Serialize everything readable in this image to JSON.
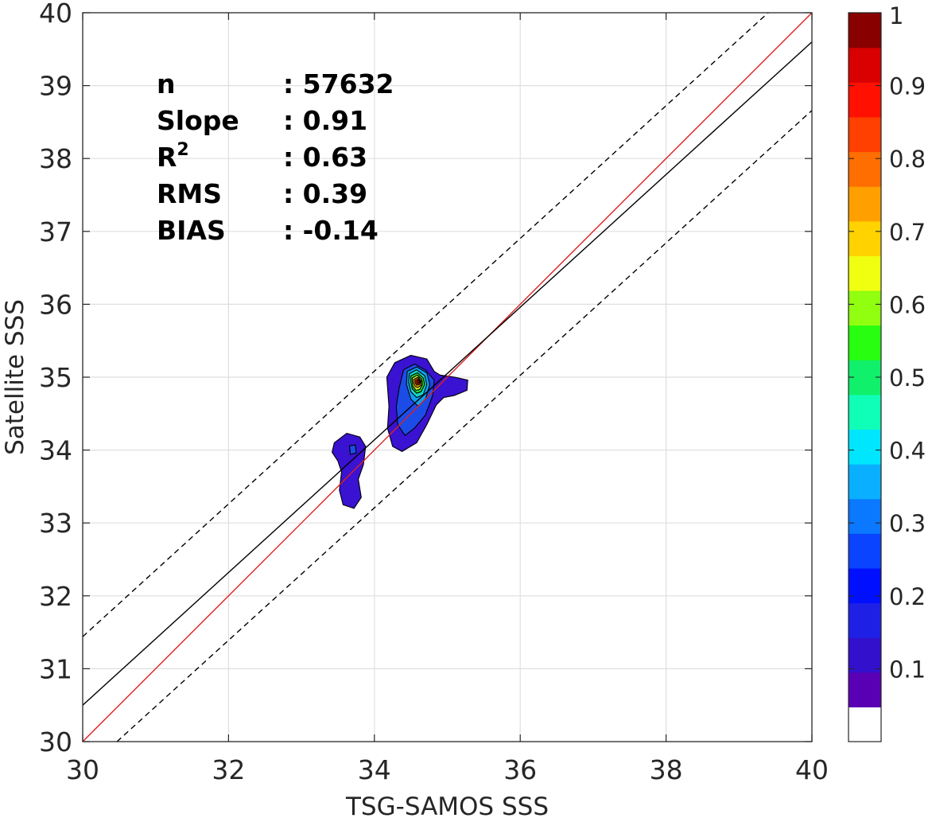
{
  "chart_data": {
    "type": "contour",
    "xlabel": "TSG-SAMOS SSS",
    "ylabel": "Satellite SSS",
    "xlim": [
      30,
      40
    ],
    "ylim": [
      30,
      40
    ],
    "x_ticks": [
      "30",
      "32",
      "34",
      "36",
      "38",
      "40"
    ],
    "y_ticks": [
      "30",
      "31",
      "32",
      "33",
      "34",
      "35",
      "36",
      "37",
      "38",
      "39",
      "40"
    ],
    "grid": true,
    "stats": [
      {
        "label": "n",
        "value": ": 57632"
      },
      {
        "label": "Slope",
        "value": ": 0.91"
      },
      {
        "label": "R",
        "value": ": 0.63",
        "superscript": "2"
      },
      {
        "label": "RMS",
        "value": ": 0.39"
      },
      {
        "label": "BIAS",
        "value": ": -0.14"
      }
    ],
    "lines": [
      {
        "kind": "one-to-one",
        "color": "#e02020",
        "style": "solid",
        "x": [
          30,
          40
        ],
        "y": [
          30,
          40
        ]
      },
      {
        "kind": "regression",
        "color": "#000000",
        "style": "solid",
        "x": [
          30,
          40
        ],
        "y": [
          30.5,
          39.6
        ]
      },
      {
        "kind": "upper-bound",
        "color": "#000000",
        "style": "dashed",
        "x": [
          30,
          39.4
        ],
        "y": [
          31.44,
          40
        ]
      },
      {
        "kind": "lower-bound",
        "color": "#000000",
        "style": "dashed",
        "x": [
          30.47,
          40
        ],
        "y": [
          30,
          38.66
        ]
      }
    ],
    "density_peak": {
      "x": 34.6,
      "y": 34.93
    },
    "contour_regions": [
      {
        "level": 0.1,
        "color": "#3a12d2",
        "points": [
          [
            34.28,
            35.2
          ],
          [
            34.5,
            35.3
          ],
          [
            34.72,
            35.25
          ],
          [
            34.82,
            35.08
          ],
          [
            34.9,
            35.03
          ],
          [
            35.1,
            35.0
          ],
          [
            35.28,
            34.96
          ],
          [
            35.27,
            34.82
          ],
          [
            35.1,
            34.75
          ],
          [
            34.95,
            34.72
          ],
          [
            34.85,
            34.62
          ],
          [
            34.72,
            34.35
          ],
          [
            34.58,
            34.1
          ],
          [
            34.38,
            33.98
          ],
          [
            34.25,
            34.05
          ],
          [
            34.18,
            34.3
          ],
          [
            34.2,
            34.6
          ],
          [
            34.17,
            35.0
          ]
        ]
      },
      {
        "level": 0.1,
        "color": "#3a12d2",
        "points": [
          [
            33.45,
            34.1
          ],
          [
            33.62,
            34.23
          ],
          [
            33.8,
            34.18
          ],
          [
            33.88,
            34.05
          ],
          [
            33.85,
            33.8
          ],
          [
            33.78,
            33.6
          ],
          [
            33.82,
            33.35
          ],
          [
            33.72,
            33.2
          ],
          [
            33.57,
            33.25
          ],
          [
            33.52,
            33.45
          ],
          [
            33.55,
            33.7
          ],
          [
            33.5,
            33.85
          ],
          [
            33.42,
            33.97
          ]
        ]
      },
      {
        "level": 0.2,
        "color": "#1c4ce8",
        "points": [
          [
            34.4,
            35.1
          ],
          [
            34.55,
            35.18
          ],
          [
            34.7,
            35.1
          ],
          [
            34.82,
            34.96
          ],
          [
            34.8,
            34.75
          ],
          [
            34.7,
            34.48
          ],
          [
            34.55,
            34.3
          ],
          [
            34.42,
            34.2
          ],
          [
            34.32,
            34.35
          ],
          [
            34.3,
            34.6
          ],
          [
            34.34,
            34.85
          ]
        ]
      },
      {
        "level": 0.2,
        "color": "#1c4ce8",
        "points": [
          [
            33.66,
            34.06
          ],
          [
            33.74,
            34.07
          ],
          [
            33.75,
            33.96
          ],
          [
            33.67,
            33.94
          ]
        ]
      },
      {
        "level": 0.3,
        "color": "#0f9ef0",
        "points": [
          [
            34.45,
            35.08
          ],
          [
            34.58,
            35.14
          ],
          [
            34.72,
            35.06
          ],
          [
            34.76,
            34.9
          ],
          [
            34.7,
            34.7
          ],
          [
            34.6,
            34.6
          ],
          [
            34.5,
            34.7
          ],
          [
            34.44,
            34.9
          ]
        ]
      },
      {
        "level": 0.4,
        "color": "#12d8c8",
        "points": [
          [
            34.48,
            35.05
          ],
          [
            34.58,
            35.1
          ],
          [
            34.69,
            35.02
          ],
          [
            34.72,
            34.9
          ],
          [
            34.67,
            34.76
          ],
          [
            34.58,
            34.72
          ],
          [
            34.5,
            34.8
          ],
          [
            34.47,
            34.93
          ]
        ]
      },
      {
        "level": 0.5,
        "color": "#28d838",
        "points": [
          [
            34.5,
            35.02
          ],
          [
            34.59,
            35.06
          ],
          [
            34.67,
            34.99
          ],
          [
            34.69,
            34.9
          ],
          [
            34.64,
            34.8
          ],
          [
            34.58,
            34.78
          ],
          [
            34.52,
            34.84
          ],
          [
            34.5,
            34.93
          ]
        ]
      },
      {
        "level": 0.6,
        "color": "#cfe82a",
        "points": [
          [
            34.52,
            34.99
          ],
          [
            34.59,
            35.03
          ],
          [
            34.65,
            34.97
          ],
          [
            34.66,
            34.9
          ],
          [
            34.62,
            34.83
          ],
          [
            34.57,
            34.82
          ],
          [
            34.53,
            34.87
          ],
          [
            34.52,
            34.94
          ]
        ]
      },
      {
        "level": 0.7,
        "color": "#ffb000",
        "points": [
          [
            34.54,
            34.97
          ],
          [
            34.6,
            35.0
          ],
          [
            34.64,
            34.95
          ],
          [
            34.64,
            34.89
          ],
          [
            34.6,
            34.86
          ],
          [
            34.56,
            34.87
          ],
          [
            34.54,
            34.92
          ]
        ]
      },
      {
        "level": 0.85,
        "color": "#ff4a00",
        "points": [
          [
            34.56,
            34.96
          ],
          [
            34.6,
            34.98
          ],
          [
            34.63,
            34.94
          ],
          [
            34.62,
            34.9
          ],
          [
            34.58,
            34.89
          ],
          [
            34.56,
            34.92
          ]
        ]
      },
      {
        "level": 0.95,
        "color": "#b00000",
        "points": [
          [
            34.58,
            34.95
          ],
          [
            34.61,
            34.96
          ],
          [
            34.62,
            34.93
          ],
          [
            34.6,
            34.91
          ],
          [
            34.58,
            34.92
          ]
        ]
      }
    ],
    "colorbar": {
      "ticks": [
        "0.1",
        "0.2",
        "0.3",
        "0.4",
        "0.5",
        "0.6",
        "0.7",
        "0.8",
        "0.9",
        "1"
      ],
      "tick_values": [
        0.1,
        0.2,
        0.3,
        0.4,
        0.5,
        0.6,
        0.7,
        0.8,
        0.9,
        1.0
      ],
      "range": [
        0,
        1
      ],
      "colors": [
        "#ffffff",
        "#5a00b4",
        "#3310cc",
        "#1e20e6",
        "#0010ff",
        "#0a44ff",
        "#0a78ff",
        "#0ab0ff",
        "#00e6ff",
        "#10ffb8",
        "#10f06a",
        "#28ff10",
        "#90ff10",
        "#f0ff10",
        "#ffd200",
        "#ffa000",
        "#ff6e00",
        "#ff4000",
        "#ff1000",
        "#d80000",
        "#880000"
      ]
    }
  }
}
